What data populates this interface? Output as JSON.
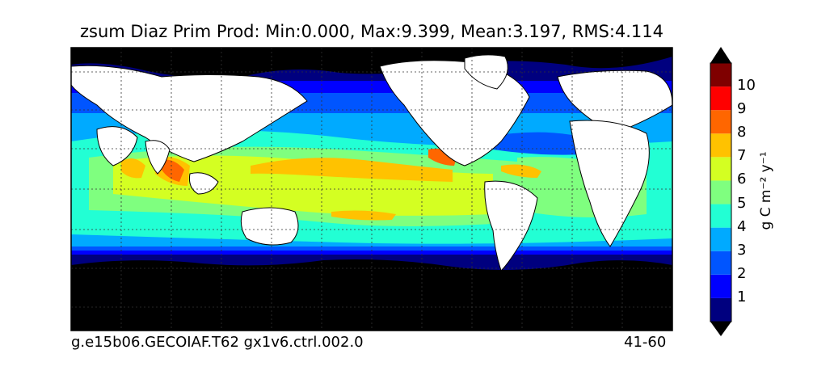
{
  "title": "zsum Diaz Prim Prod: Min:0.000, Max:9.399, Mean:3.197, RMS:4.114",
  "footer": {
    "case": "g.e15b06.GECOIAF.T62 gx1v6.ctrl.002.0",
    "years": "41-60"
  },
  "colorbar": {
    "units": "g C m⁻² y⁻¹",
    "ticks": [
      "1",
      "2",
      "3",
      "4",
      "5",
      "6",
      "7",
      "8",
      "9",
      "10"
    ],
    "levels": [
      0,
      1,
      2,
      3,
      4,
      5,
      6,
      7,
      8,
      9,
      10
    ],
    "colors": [
      "#00007f",
      "#0000ff",
      "#0055ff",
      "#00aaff",
      "#22ffd4",
      "#7fff7f",
      "#d4ff22",
      "#ffc200",
      "#ff6600",
      "#ff0000",
      "#7f0000"
    ],
    "under_color": "#000000",
    "over_color": "#000000"
  },
  "map": {
    "projection": "cylindrical",
    "land_color": "#ffffff",
    "ice_color": "#000000",
    "gridlines": "dashed"
  }
}
